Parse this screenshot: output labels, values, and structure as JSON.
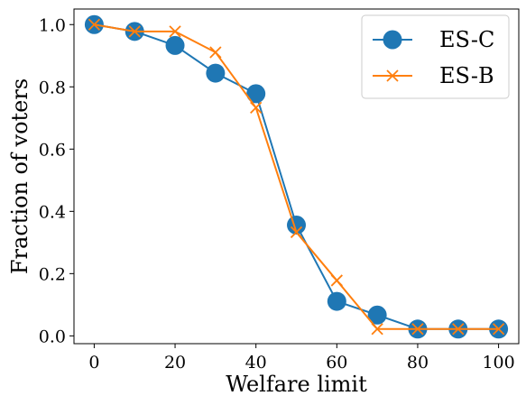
{
  "chart_data": {
    "type": "line",
    "title": "",
    "xlabel": "Welfare limit",
    "ylabel": "Fraction of voters",
    "xlim": [
      -5,
      105
    ],
    "ylim": [
      -0.025,
      1.05
    ],
    "xticks": [
      0,
      20,
      40,
      60,
      80,
      100
    ],
    "xtick_labels": [
      "0",
      "20",
      "40",
      "60",
      "80",
      "100"
    ],
    "yticks": [
      0.0,
      0.2,
      0.4,
      0.6,
      0.8,
      1.0
    ],
    "ytick_labels": [
      "0.0",
      "0.2",
      "0.4",
      "0.6",
      "0.8",
      "1.0"
    ],
    "grid": false,
    "legend_position": "top-right",
    "x": [
      0,
      10,
      20,
      30,
      40,
      50,
      60,
      70,
      80,
      90,
      100
    ],
    "series": [
      {
        "name": "ES-C",
        "color": "#1f77b4",
        "marker": "circle",
        "values": [
          1.0,
          0.978,
          0.933,
          0.844,
          0.778,
          0.356,
          0.111,
          0.067,
          0.022,
          0.022,
          0.022
        ]
      },
      {
        "name": "ES-B",
        "color": "#ff7f0e",
        "marker": "x",
        "values": [
          1.0,
          0.978,
          0.978,
          0.911,
          0.733,
          0.333,
          0.178,
          0.022,
          0.022,
          0.022,
          0.022
        ]
      }
    ]
  }
}
